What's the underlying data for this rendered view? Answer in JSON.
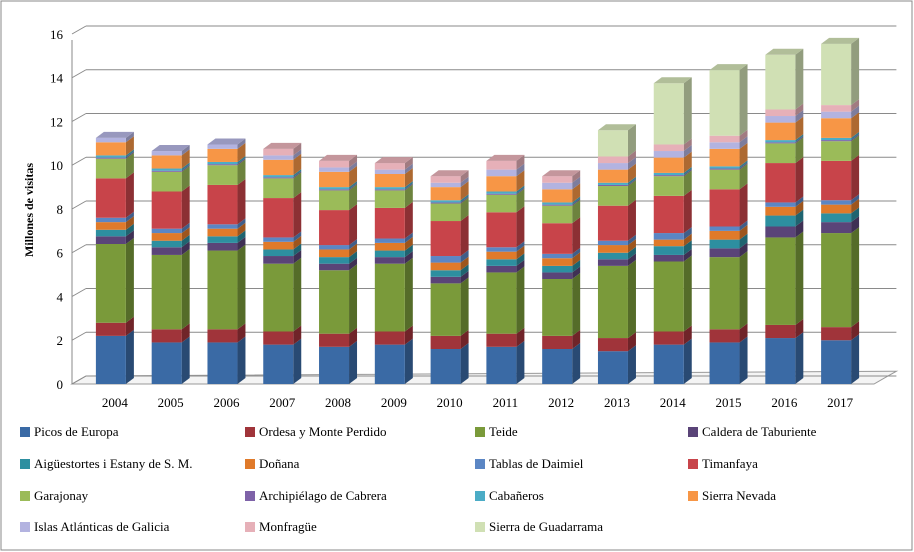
{
  "chart_data": {
    "type": "stacked_bar_3d",
    "y_label": "Millones de visitas",
    "categories": [
      "2004",
      "2005",
      "2006",
      "2007",
      "2008",
      "2009",
      "2010",
      "2011",
      "2012",
      "2013",
      "2014",
      "2015",
      "2016",
      "2017"
    ],
    "ylim": [
      0,
      16
    ],
    "yticks": [
      0,
      2,
      4,
      6,
      8,
      10,
      12,
      14,
      16
    ],
    "grid": true,
    "series": [
      {
        "name": "Picos de Europa",
        "color": "#3a6aa5",
        "values": [
          2.2,
          1.9,
          1.9,
          1.8,
          1.7,
          1.8,
          1.6,
          1.7,
          1.6,
          1.5,
          1.8,
          1.9,
          2.1,
          2.0
        ]
      },
      {
        "name": "Ordesa y Monte Perdido",
        "color": "#a0343a",
        "values": [
          0.6,
          0.6,
          0.6,
          0.6,
          0.6,
          0.6,
          0.6,
          0.6,
          0.6,
          0.6,
          0.6,
          0.6,
          0.6,
          0.6
        ]
      },
      {
        "name": "Teide",
        "color": "#7a9a3a",
        "values": [
          3.6,
          3.4,
          3.6,
          3.1,
          2.9,
          3.1,
          2.4,
          2.8,
          2.6,
          3.3,
          3.2,
          3.3,
          4.0,
          4.3
        ]
      },
      {
        "name": "Caldera de Taburiente",
        "color": "#5a4478",
        "values": [
          0.35,
          0.35,
          0.35,
          0.35,
          0.3,
          0.3,
          0.3,
          0.3,
          0.3,
          0.3,
          0.3,
          0.4,
          0.5,
          0.5
        ]
      },
      {
        "name": "Aigüestortes i Estany de S. M.",
        "color": "#2d8fa0",
        "values": [
          0.3,
          0.3,
          0.3,
          0.3,
          0.3,
          0.3,
          0.3,
          0.3,
          0.3,
          0.3,
          0.4,
          0.4,
          0.5,
          0.4
        ]
      },
      {
        "name": "Doñana",
        "color": "#e07a2a",
        "values": [
          0.35,
          0.35,
          0.35,
          0.35,
          0.35,
          0.35,
          0.35,
          0.35,
          0.35,
          0.35,
          0.3,
          0.4,
          0.4,
          0.4
        ]
      },
      {
        "name": "Tablas de Daimiel",
        "color": "#5b86c4",
        "values": [
          0.2,
          0.2,
          0.2,
          0.2,
          0.2,
          0.2,
          0.3,
          0.2,
          0.2,
          0.2,
          0.3,
          0.2,
          0.2,
          0.2
        ]
      },
      {
        "name": "Timanfaya",
        "color": "#c8444a",
        "values": [
          1.8,
          1.7,
          1.8,
          1.8,
          1.6,
          1.4,
          1.6,
          1.6,
          1.4,
          1.6,
          1.7,
          1.7,
          1.8,
          1.8
        ]
      },
      {
        "name": "Garajonay",
        "color": "#9bbb59",
        "values": [
          0.9,
          0.9,
          0.9,
          0.9,
          0.9,
          0.8,
          0.8,
          0.8,
          0.8,
          0.9,
          0.9,
          0.9,
          0.9,
          0.9
        ]
      },
      {
        "name": "Archipiélago de Cabrera",
        "color": "#7e62a8",
        "values": [
          0.05,
          0.05,
          0.05,
          0.05,
          0.05,
          0.05,
          0.05,
          0.05,
          0.05,
          0.05,
          0.05,
          0.05,
          0.05,
          0.05
        ]
      },
      {
        "name": "Cabañeros",
        "color": "#4bacc6",
        "values": [
          0.1,
          0.1,
          0.1,
          0.1,
          0.1,
          0.1,
          0.1,
          0.1,
          0.1,
          0.1,
          0.1,
          0.1,
          0.1,
          0.1
        ]
      },
      {
        "name": "Sierra Nevada",
        "color": "#f79646",
        "values": [
          0.6,
          0.6,
          0.6,
          0.7,
          0.7,
          0.6,
          0.6,
          0.7,
          0.6,
          0.6,
          0.7,
          0.8,
          0.8,
          0.9
        ]
      },
      {
        "name": "Islas Atlánticas de Galicia",
        "color": "#b3b3e0",
        "values": [
          0.2,
          0.2,
          0.2,
          0.2,
          0.2,
          0.2,
          0.2,
          0.3,
          0.3,
          0.3,
          0.3,
          0.3,
          0.3,
          0.3
        ]
      },
      {
        "name": "Monfragüe",
        "color": "#e6b0b8",
        "values": [
          0,
          0,
          0,
          0.3,
          0.3,
          0.3,
          0.3,
          0.4,
          0.3,
          0.3,
          0.3,
          0.3,
          0.3,
          0.3
        ]
      },
      {
        "name": "Sierra de Guadarrama",
        "color": "#d0e0b4",
        "values": [
          0,
          0,
          0,
          0,
          0,
          0,
          0,
          0,
          0,
          1.2,
          2.8,
          3.0,
          2.5,
          2.8
        ]
      }
    ]
  }
}
